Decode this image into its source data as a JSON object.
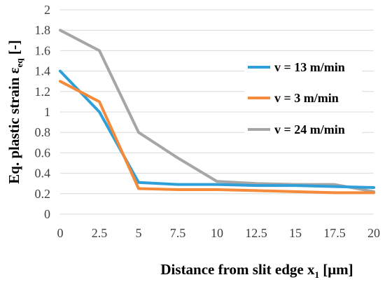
{
  "chart_data": {
    "type": "line",
    "x": [
      0,
      2.5,
      5,
      7.5,
      10,
      12.5,
      15,
      17.5,
      20
    ],
    "x_tick_labels": [
      "0",
      "2.5",
      "5",
      "7.5",
      "10",
      "12.5",
      "15",
      "17.5",
      "20"
    ],
    "y_tick_labels": [
      "0",
      "0.2",
      "0.4",
      "0.6",
      "0.8",
      "1",
      "1.2",
      "1.4",
      "1.6",
      "1.8",
      "2"
    ],
    "ylim": [
      0,
      2
    ],
    "xlim": [
      0,
      20
    ],
    "grid": "horizontal",
    "legend_position": "right",
    "xlabel": {
      "main": "Distance from slit edge x",
      "sub": "1",
      "unit": " [μm]"
    },
    "ylabel": {
      "main": "Eq. plastic strain ε",
      "sub": "eq",
      "unit": " [-]"
    },
    "series": [
      {
        "name": "v = 13 m/min",
        "color": "#2e9fd8",
        "values": [
          1.4,
          1.0,
          0.31,
          0.29,
          0.29,
          0.28,
          0.28,
          0.27,
          0.26
        ]
      },
      {
        "name": "v = 3 m/min",
        "color": "#f58a3a",
        "values": [
          1.3,
          1.1,
          0.25,
          0.24,
          0.24,
          0.23,
          0.22,
          0.21,
          0.21
        ]
      },
      {
        "name": "v = 24 m/min",
        "color": "#a6a6a6",
        "values": [
          1.8,
          1.6,
          0.8,
          0.55,
          0.32,
          0.3,
          0.29,
          0.29,
          0.22
        ]
      }
    ]
  }
}
